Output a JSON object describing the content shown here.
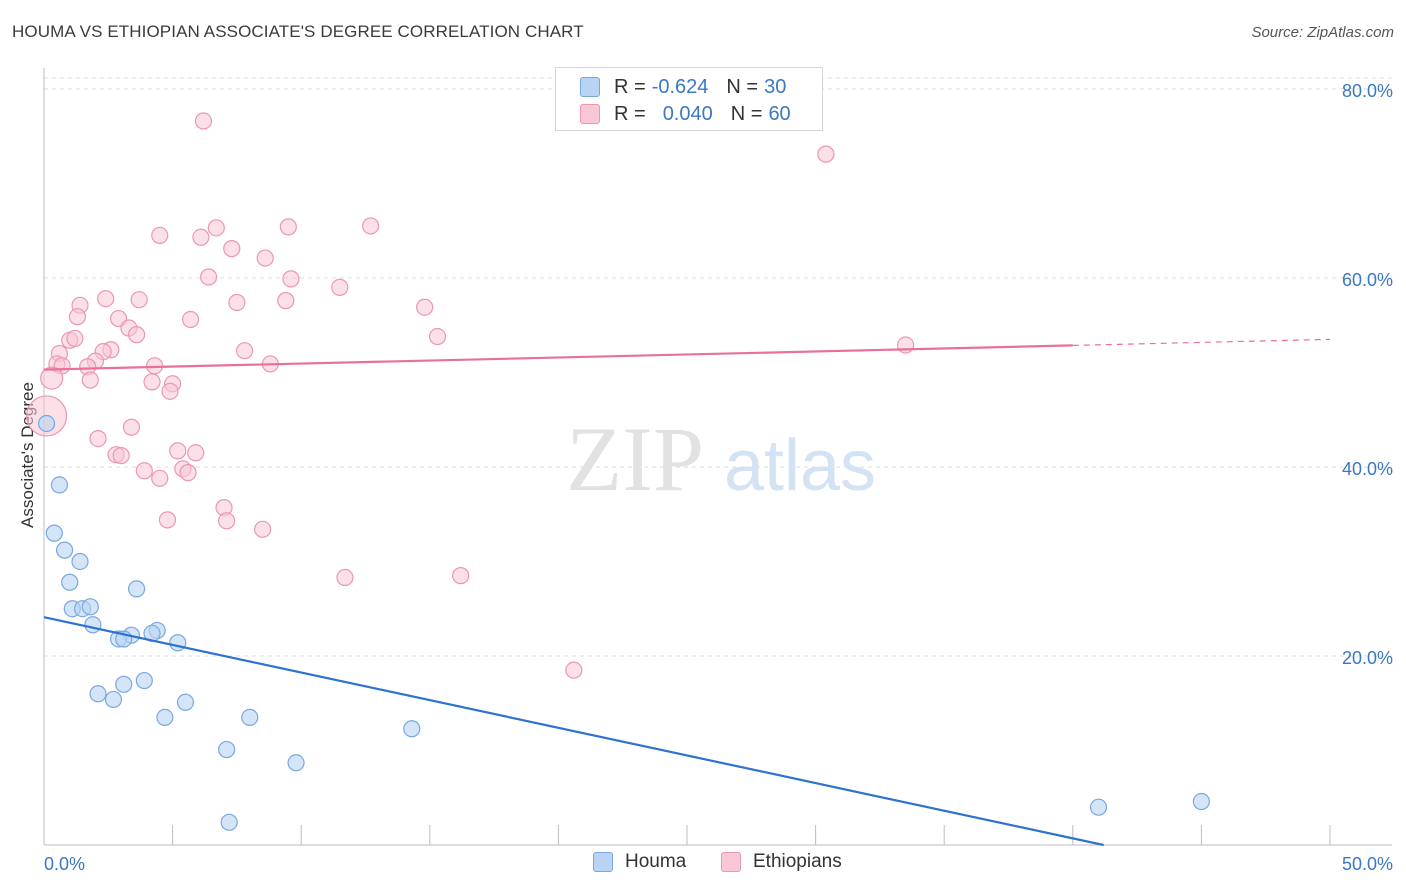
{
  "header": {
    "title": "HOUMA VS ETHIOPIAN ASSOCIATE'S DEGREE CORRELATION CHART",
    "source": "Source: ZipAtlas.com"
  },
  "watermark": {
    "zip": "ZIP",
    "atlas": "atlas"
  },
  "legend": {
    "rows": [
      {
        "r_label": "R = ",
        "r_value": "-0.624",
        "n_label": "N = ",
        "n_value": "30"
      },
      {
        "r_label": "R = ",
        "r_value": "0.040",
        "n_label": "N = ",
        "n_value": "60"
      }
    ]
  },
  "bottom_legend": {
    "houma": "Houma",
    "ethiopians": "Ethiopians"
  },
  "colors": {
    "houma_fill": "#b8d3f4",
    "houma_stroke": "#7aa7df",
    "houma_line": "#2f72d0",
    "eth_fill": "#f8c6d4",
    "eth_stroke": "#eb97b2",
    "eth_line": "#e8709a",
    "axis_text": "#3a78c4",
    "grid": "#dedede"
  },
  "chart_data": {
    "type": "scatter",
    "title": "HOUMA VS ETHIOPIAN ASSOCIATE'S DEGREE CORRELATION CHART",
    "xlabel": "",
    "ylabel": "Associate's Degree",
    "xlim": [
      0,
      50
    ],
    "ylim": [
      0,
      82
    ],
    "x_tick_labels": [
      {
        "value": 0,
        "label": "0.0%"
      },
      {
        "value": 50,
        "label": "50.0%"
      }
    ],
    "y_tick_labels": [
      {
        "value": 20,
        "label": "20.0%"
      },
      {
        "value": 40,
        "label": "40.0%"
      },
      {
        "value": 60,
        "label": "60.0%"
      },
      {
        "value": 80,
        "label": "80.0%"
      }
    ],
    "series": [
      {
        "name": "Houma",
        "R": -0.624,
        "N": 30,
        "trend": {
          "x0": 0,
          "y0": 24.1,
          "x1": 41.2,
          "y1": 0
        },
        "points": [
          [
            0.1,
            44.6
          ],
          [
            0.6,
            38.1
          ],
          [
            0.4,
            33.0
          ],
          [
            0.8,
            31.2
          ],
          [
            1.4,
            30.0
          ],
          [
            1.0,
            27.8
          ],
          [
            3.6,
            27.1
          ],
          [
            1.1,
            25.0
          ],
          [
            1.5,
            25.0
          ],
          [
            1.8,
            25.2
          ],
          [
            1.9,
            23.3
          ],
          [
            4.4,
            22.7
          ],
          [
            3.4,
            22.2
          ],
          [
            2.9,
            21.8
          ],
          [
            3.1,
            21.8
          ],
          [
            4.2,
            22.4
          ],
          [
            5.2,
            21.4
          ],
          [
            3.9,
            17.4
          ],
          [
            3.1,
            17.0
          ],
          [
            2.1,
            16.0
          ],
          [
            2.7,
            15.4
          ],
          [
            5.5,
            15.1
          ],
          [
            4.7,
            13.5
          ],
          [
            8.0,
            13.5
          ],
          [
            14.3,
            12.3
          ],
          [
            7.1,
            10.1
          ],
          [
            9.8,
            8.7
          ],
          [
            7.2,
            2.4
          ],
          [
            41.0,
            4.0
          ],
          [
            45.0,
            4.6
          ]
        ]
      },
      {
        "name": "Ethiopians",
        "R": 0.04,
        "N": 60,
        "trend": {
          "x0": 0,
          "y0": 50.3,
          "x1": 50,
          "y1": 53.5
        },
        "trend_solid_until_x": 40,
        "points": [
          [
            6.2,
            76.6
          ],
          [
            30.4,
            73.1
          ],
          [
            12.7,
            65.5
          ],
          [
            9.5,
            65.4
          ],
          [
            6.7,
            65.3
          ],
          [
            4.5,
            64.5
          ],
          [
            6.1,
            64.3
          ],
          [
            7.3,
            63.1
          ],
          [
            8.6,
            62.1
          ],
          [
            6.4,
            60.1
          ],
          [
            9.6,
            59.9
          ],
          [
            11.5,
            59.0
          ],
          [
            2.4,
            57.8
          ],
          [
            3.7,
            57.7
          ],
          [
            7.5,
            57.4
          ],
          [
            9.4,
            57.6
          ],
          [
            1.4,
            57.1
          ],
          [
            14.8,
            56.9
          ],
          [
            1.3,
            55.9
          ],
          [
            2.9,
            55.7
          ],
          [
            5.7,
            55.6
          ],
          [
            3.3,
            54.7
          ],
          [
            3.6,
            54.0
          ],
          [
            15.3,
            53.8
          ],
          [
            1.0,
            53.4
          ],
          [
            1.2,
            53.6
          ],
          [
            33.5,
            52.9
          ],
          [
            0.6,
            52.0
          ],
          [
            2.6,
            52.4
          ],
          [
            2.3,
            52.2
          ],
          [
            7.8,
            52.3
          ],
          [
            0.5,
            50.9
          ],
          [
            0.7,
            50.7
          ],
          [
            2.0,
            51.2
          ],
          [
            1.7,
            50.6
          ],
          [
            4.3,
            50.7
          ],
          [
            8.8,
            50.9
          ],
          [
            0.3,
            49.4
          ],
          [
            1.8,
            49.2
          ],
          [
            4.2,
            49.0
          ],
          [
            5.0,
            48.8
          ],
          [
            4.9,
            48.0
          ],
          [
            0.1,
            45.4
          ],
          [
            3.4,
            44.2
          ],
          [
            2.1,
            43.0
          ],
          [
            5.2,
            41.7
          ],
          [
            5.9,
            41.5
          ],
          [
            2.8,
            41.3
          ],
          [
            3.0,
            41.2
          ],
          [
            3.9,
            39.6
          ],
          [
            5.4,
            39.8
          ],
          [
            5.6,
            39.4
          ],
          [
            4.5,
            38.8
          ],
          [
            7.0,
            35.7
          ],
          [
            7.1,
            34.3
          ],
          [
            4.8,
            34.4
          ],
          [
            8.5,
            33.4
          ],
          [
            11.7,
            28.3
          ],
          [
            16.2,
            28.5
          ],
          [
            20.6,
            18.5
          ]
        ]
      }
    ]
  }
}
